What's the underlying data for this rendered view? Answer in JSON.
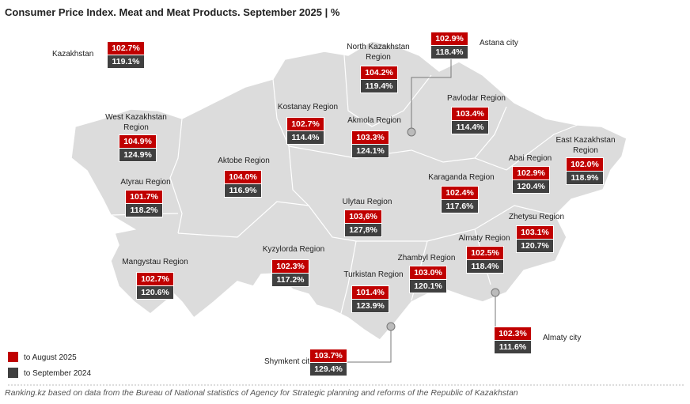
{
  "header": {
    "title": "Consumer Price Index. Meat and Meat Products. September 2025 | %"
  },
  "regions": [
    {
      "name": "Kazakhstan",
      "to_august_2025": "102.7%",
      "to_september_2024": "119.1%"
    },
    {
      "name": "Astana city",
      "to_august_2025": "102.9%",
      "to_september_2024": "118.4%"
    },
    {
      "name": "North Kazakhstan Region",
      "to_august_2025": "104.2%",
      "to_september_2024": "119.4%"
    },
    {
      "name": "West Kazakhstan Region",
      "to_august_2025": "104.9%",
      "to_september_2024": "124.9%"
    },
    {
      "name": "Kostanay Region",
      "to_august_2025": "102.7%",
      "to_september_2024": "114.4%"
    },
    {
      "name": "Akmola Region",
      "to_august_2025": "103.3%",
      "to_september_2024": "124.1%"
    },
    {
      "name": "Pavlodar Region",
      "to_august_2025": "103.4%",
      "to_september_2024": "114.4%"
    },
    {
      "name": "East Kazakhstan Region",
      "to_august_2025": "102.0%",
      "to_september_2024": "118.9%"
    },
    {
      "name": "Aktobe Region",
      "to_august_2025": "104.0%",
      "to_september_2024": "116.9%"
    },
    {
      "name": "Atyrau Region",
      "to_august_2025": "101.7%",
      "to_september_2024": "118.2%"
    },
    {
      "name": "Abai Region",
      "to_august_2025": "102.9%",
      "to_september_2024": "120.4%"
    },
    {
      "name": "Karaganda Region",
      "to_august_2025": "102.4%",
      "to_september_2024": "117.6%"
    },
    {
      "name": "Ulytau Region",
      "to_august_2025": "103,6%",
      "to_september_2024": "127,8%"
    },
    {
      "name": "Zhetysu Region",
      "to_august_2025": "103.1%",
      "to_september_2024": "120.7%"
    },
    {
      "name": "Mangystau Region",
      "to_august_2025": "102.7%",
      "to_september_2024": "120.6%"
    },
    {
      "name": "Kyzylorda Region",
      "to_august_2025": "102.3%",
      "to_september_2024": "117.2%"
    },
    {
      "name": "Almaty Region",
      "to_august_2025": "102.5%",
      "to_september_2024": "118.4%"
    },
    {
      "name": "Zhambyl Region",
      "to_august_2025": "103.0%",
      "to_september_2024": "120.1%"
    },
    {
      "name": "Turkistan Region",
      "to_august_2025": "101.4%",
      "to_september_2024": "123.9%"
    },
    {
      "name": "Almaty city",
      "to_august_2025": "102.3%",
      "to_september_2024": "111.6%"
    },
    {
      "name": "Shymkent city",
      "to_august_2025": "103.7%",
      "to_september_2024": "129.4%"
    }
  ],
  "legend": {
    "items": [
      "to August 2025",
      "to September 2024"
    ]
  },
  "footer": {
    "source": "Ranking.kz based on data from the Bureau of National statistics of Agency for Strategic planning and reforms of the Republic of Kazakhstan"
  }
}
